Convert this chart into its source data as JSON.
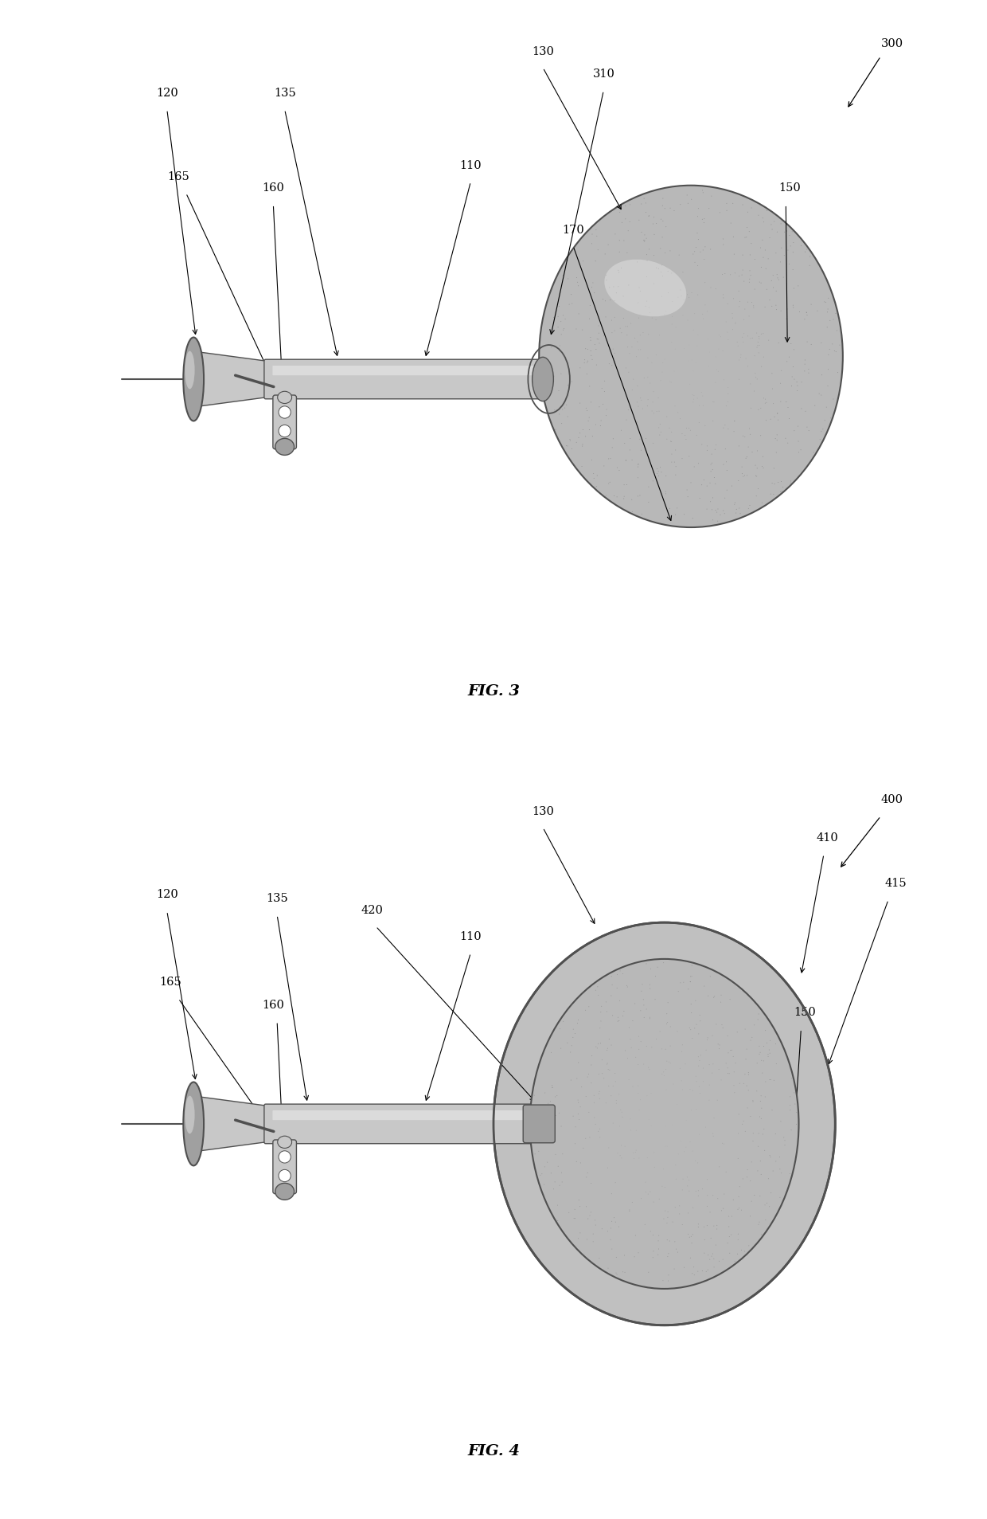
{
  "fig_width": 12.4,
  "fig_height": 19.08,
  "bg_color": "#ffffff",
  "fig3_label": "FIG. 3",
  "fig4_label": "FIG. 4",
  "gray_light": "#c8c8c8",
  "gray_medium": "#a0a0a0",
  "gray_dark": "#505050",
  "gray_balloon": "#b8b8b8",
  "gray_balloon_dark": "#808080"
}
